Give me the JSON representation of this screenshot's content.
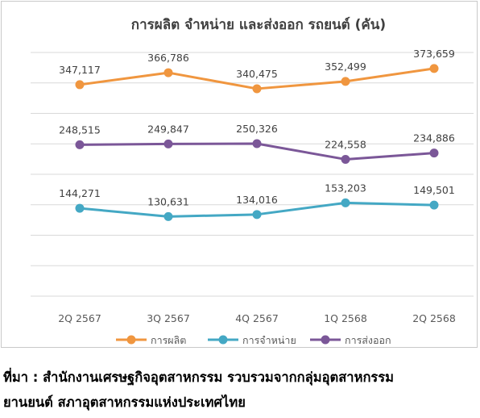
{
  "chart_data": {
    "type": "line",
    "title": "การผลิต จำหน่าย และส่งออก รถยนต์ (คัน)",
    "categories": [
      "2Q 2567",
      "3Q 2567",
      "4Q 2567",
      "1Q 2568",
      "2Q 2568"
    ],
    "series": [
      {
        "name": "การผลิต",
        "color": "#f0963f",
        "values": [
          347117,
          366786,
          340475,
          352499,
          373659
        ]
      },
      {
        "name": "การจำหน่าย",
        "color": "#44a8c4",
        "values": [
          144271,
          130631,
          134016,
          153203,
          149501
        ]
      },
      {
        "name": "การส่งออก",
        "color": "#7b5798",
        "values": [
          248515,
          249847,
          250326,
          224558,
          234886
        ]
      }
    ],
    "ylim": [
      0,
      400000
    ],
    "grid": true,
    "legend": "bottom",
    "data_labels": {
      "การผลิต": [
        "347,117",
        "366,786",
        "340,475",
        "352,499",
        "373,659"
      ],
      "การจำหน่าย": [
        "144,271",
        "130,631",
        "134,016",
        "153,203",
        "149,501"
      ],
      "การส่งออก": [
        "248,515",
        "249,847",
        "250,326",
        "224,558",
        "234,886"
      ]
    }
  },
  "source": {
    "line1": "ที่มา : สำนักงานเศรษฐกิจอุตสาหกรรม รวบรวมจากกลุ่มอุตสาหกรรม",
    "line2": "ยานยนต์ สภาอุตสาหกรรมแห่งประเทศไทย"
  }
}
